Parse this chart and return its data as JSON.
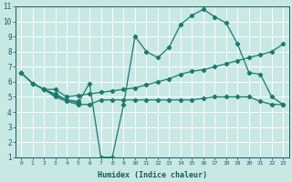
{
  "background_color": "#c8e8e4",
  "grid_color": "#ffffff",
  "line_color": "#1a7a6e",
  "xlabel": "Humidex (Indice chaleur)",
  "xlim": [
    -0.5,
    23.5
  ],
  "ylim": [
    1,
    11
  ],
  "xticks": [
    0,
    1,
    2,
    3,
    4,
    5,
    6,
    7,
    8,
    9,
    10,
    11,
    12,
    13,
    14,
    15,
    16,
    17,
    18,
    19,
    20,
    21,
    22,
    23
  ],
  "yticks": [
    1,
    2,
    3,
    4,
    5,
    6,
    7,
    8,
    9,
    10,
    11
  ],
  "line1_x": [
    0,
    1,
    2,
    3,
    4,
    5,
    6,
    7,
    8,
    9,
    10,
    11,
    12,
    13,
    14,
    15,
    16,
    17,
    18,
    19,
    20,
    21,
    22,
    23
  ],
  "line1_y": [
    6.6,
    5.9,
    5.5,
    5.5,
    5.0,
    5.1,
    5.2,
    5.3,
    5.4,
    5.5,
    5.6,
    5.8,
    6.0,
    6.2,
    6.5,
    6.7,
    6.8,
    7.0,
    7.2,
    7.4,
    7.6,
    7.8,
    8.0,
    8.5
  ],
  "line2_x": [
    0,
    1,
    2,
    3,
    4,
    5,
    6,
    7,
    8,
    9,
    10,
    11,
    12,
    13,
    14,
    15,
    16,
    17,
    18,
    19,
    20,
    21,
    22,
    23
  ],
  "line2_y": [
    6.6,
    5.9,
    5.5,
    5.0,
    4.7,
    4.5,
    4.5,
    4.8,
    4.8,
    4.8,
    4.8,
    4.8,
    4.8,
    4.8,
    4.8,
    4.8,
    4.9,
    5.0,
    5.0,
    5.0,
    5.0,
    4.7,
    4.5,
    4.5
  ],
  "line3_x": [
    0,
    1,
    2,
    3,
    4,
    5,
    6,
    7,
    8,
    9,
    10,
    11,
    12,
    13,
    14,
    15,
    16,
    17,
    18,
    19,
    20,
    21,
    22,
    23
  ],
  "line3_y": [
    6.6,
    5.9,
    5.5,
    5.1,
    4.8,
    4.6,
    5.9,
    1.0,
    1.0,
    4.5,
    9.0,
    8.0,
    7.6,
    8.3,
    9.8,
    10.4,
    10.8,
    10.3,
    9.9,
    8.5,
    6.6,
    6.5,
    5.0,
    4.5
  ],
  "line4_x": [
    2,
    3,
    4,
    5
  ],
  "line4_y": [
    5.5,
    5.2,
    4.8,
    4.7
  ]
}
